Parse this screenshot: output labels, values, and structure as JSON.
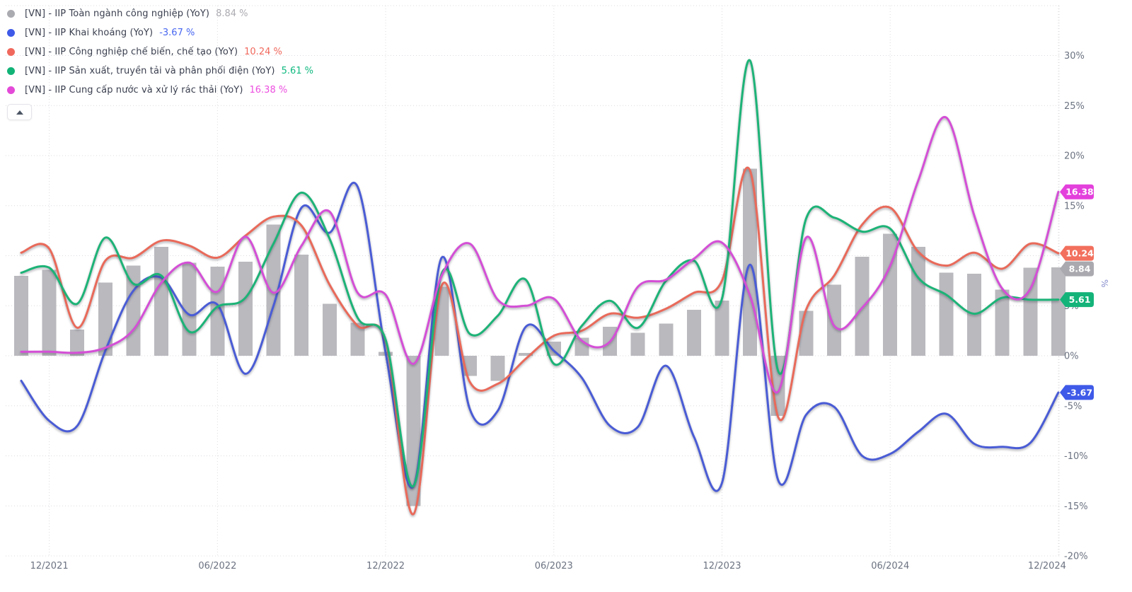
{
  "legend": {
    "items": [
      {
        "label": "[VN] - IIP Toàn ngành công nghiệp (YoY)",
        "value_text": "8.84 %",
        "dot_color": "#aaaab1",
        "value_color": "#ababb2"
      },
      {
        "label": "[VN] - IIP Khai khoáng (YoY)",
        "value_text": "-3.67 %",
        "dot_color": "#3f5ae8",
        "value_color": "#4766f0"
      },
      {
        "label": "[VN] - IIP Công nghiệp chế biến, chế tạo (YoY)",
        "value_text": "10.24 %",
        "dot_color": "#f0685c",
        "value_color": "#f0685c"
      },
      {
        "label": "[VN] - IIP Sản xuất, truyền tải và phân phối điện (YoY)",
        "value_text": "5.61 %",
        "dot_color": "#12b377",
        "value_color": "#10b981"
      },
      {
        "label": "[VN] - IIP Cung cấp nước và xử lý rác thải (YoY)",
        "value_text": "16.38 %",
        "dot_color": "#e44ad8",
        "value_color": "#ec4fe0"
      }
    ],
    "collapse_icon": "triangle-up"
  },
  "chart_data": {
    "type": "mixed",
    "x": [
      "11/2021",
      "12/2021",
      "01/2022",
      "02/2022",
      "03/2022",
      "04/2022",
      "05/2022",
      "06/2022",
      "07/2022",
      "08/2022",
      "09/2022",
      "10/2022",
      "11/2022",
      "12/2022",
      "01/2023",
      "02/2023",
      "03/2023",
      "04/2023",
      "05/2023",
      "06/2023",
      "07/2023",
      "08/2023",
      "09/2023",
      "10/2023",
      "11/2023",
      "12/2023",
      "01/2024",
      "02/2024",
      "03/2024",
      "04/2024",
      "05/2024",
      "06/2024",
      "07/2024",
      "08/2024",
      "09/2024",
      "10/2024",
      "11/2024",
      "12/2024"
    ],
    "series": [
      {
        "name": "[VN] - IIP Toàn ngành công nghiệp (YoY)",
        "type": "bar",
        "color": "#b9b9be",
        "values": [
          8.0,
          8.6,
          2.6,
          7.3,
          9.0,
          10.9,
          9.3,
          8.9,
          9.4,
          13.1,
          10.1,
          5.2,
          3.3,
          0.4,
          -15.0,
          6.9,
          -2.0,
          -2.5,
          0.3,
          1.4,
          1.8,
          2.9,
          2.3,
          3.2,
          4.6,
          5.5,
          18.7,
          -6.0,
          4.5,
          7.1,
          9.9,
          12.2,
          10.9,
          8.3,
          8.2,
          6.6,
          8.8,
          8.84
        ]
      },
      {
        "name": "[VN] - IIP Khai khoáng (YoY)",
        "type": "line",
        "color": "#4a5cd5",
        "values": [
          -2.5,
          -6.5,
          -7.0,
          0.5,
          6.5,
          7.8,
          4.1,
          5.1,
          -1.8,
          5.0,
          14.8,
          12.3,
          16.9,
          0.3,
          -13.0,
          9.8,
          -5.3,
          -5.5,
          2.9,
          0.5,
          -2.2,
          -7.0,
          -7.1,
          -1.0,
          -8.1,
          -12.7,
          9.1,
          -12.4,
          -5.9,
          -5.1,
          -10.0,
          -9.8,
          -7.6,
          -5.8,
          -8.8,
          -9.1,
          -8.7,
          -3.67
        ]
      },
      {
        "name": "[VN] - IIP Công nghiệp chế biến, chế tạo (YoY)",
        "type": "line",
        "color": "#e96a5a",
        "values": [
          10.3,
          10.7,
          2.8,
          9.5,
          9.8,
          11.5,
          11.0,
          9.8,
          12.0,
          13.9,
          13.0,
          7.1,
          3.0,
          1.5,
          -15.8,
          7.0,
          -2.6,
          -2.8,
          -0.3,
          2.0,
          2.5,
          4.2,
          3.8,
          4.7,
          6.3,
          7.5,
          18.5,
          -6.1,
          4.6,
          8.0,
          13.1,
          14.8,
          10.4,
          9.0,
          10.3,
          8.7,
          11.2,
          10.24
        ]
      },
      {
        "name": "[VN] - IIP Sản xuất, truyền tải và phân phối điện (YoY)",
        "type": "line",
        "color": "#1db377",
        "values": [
          8.3,
          8.8,
          5.2,
          11.8,
          7.2,
          8.0,
          2.4,
          4.9,
          5.8,
          11.2,
          16.3,
          11.7,
          3.8,
          1.6,
          -13.0,
          8.2,
          2.2,
          4.0,
          7.6,
          -0.8,
          3.0,
          5.5,
          2.8,
          7.5,
          9.5,
          5.7,
          29.5,
          -1.5,
          13.7,
          13.8,
          12.4,
          12.7,
          7.8,
          6.1,
          4.2,
          5.8,
          5.6,
          5.61
        ]
      },
      {
        "name": "[VN] - IIP Cung cấp nước và xử lý rác thải (YoY)",
        "type": "line",
        "color": "#d44fd6",
        "values": [
          0.4,
          0.4,
          0.3,
          0.8,
          2.6,
          7.3,
          9.3,
          6.4,
          11.9,
          6.3,
          11.0,
          14.4,
          6.3,
          6.1,
          -0.8,
          8.0,
          11.2,
          5.6,
          5.0,
          5.7,
          1.5,
          1.4,
          6.9,
          7.6,
          9.7,
          11.3,
          6.0,
          -3.6,
          11.8,
          3.0,
          4.8,
          9.0,
          17.5,
          23.8,
          14.0,
          6.7,
          6.7,
          16.38
        ]
      }
    ],
    "ylim": [
      -20,
      35
    ],
    "y_axis": {
      "title": "%",
      "ticks": [
        {
          "v": 30,
          "label": "30%"
        },
        {
          "v": 25,
          "label": "25%"
        },
        {
          "v": 20,
          "label": "20%"
        },
        {
          "v": 15,
          "label": "15%"
        },
        {
          "v": 10,
          "label": "10%"
        },
        {
          "v": 5,
          "label": "5%"
        },
        {
          "v": 0,
          "label": "0%"
        },
        {
          "v": -5,
          "label": "-5%"
        },
        {
          "v": -10,
          "label": "-10%"
        },
        {
          "v": -15,
          "label": "-15%"
        },
        {
          "v": -20,
          "label": "-20%"
        }
      ]
    },
    "x_axis": {
      "tick_indices": [
        1,
        7,
        13,
        19,
        25,
        31,
        37
      ],
      "tick_labels": [
        "12/2021",
        "06/2022",
        "12/2022",
        "06/2023",
        "12/2023",
        "06/2024",
        "12/2024"
      ]
    },
    "badges": [
      {
        "text": "16.38",
        "value": 16.38,
        "color": "#e340dc"
      },
      {
        "text": "10.24",
        "value": 10.24,
        "color": "#f2705d"
      },
      {
        "text": "8.84",
        "value": 8.84,
        "color": "#a9a9af"
      },
      {
        "text": "5.61",
        "value": 5.61,
        "color": "#14b37a"
      },
      {
        "text": "-3.67",
        "value": -3.67,
        "color": "#3f5ae8"
      }
    ],
    "grid": "dotted",
    "legend_position": "top-left"
  }
}
